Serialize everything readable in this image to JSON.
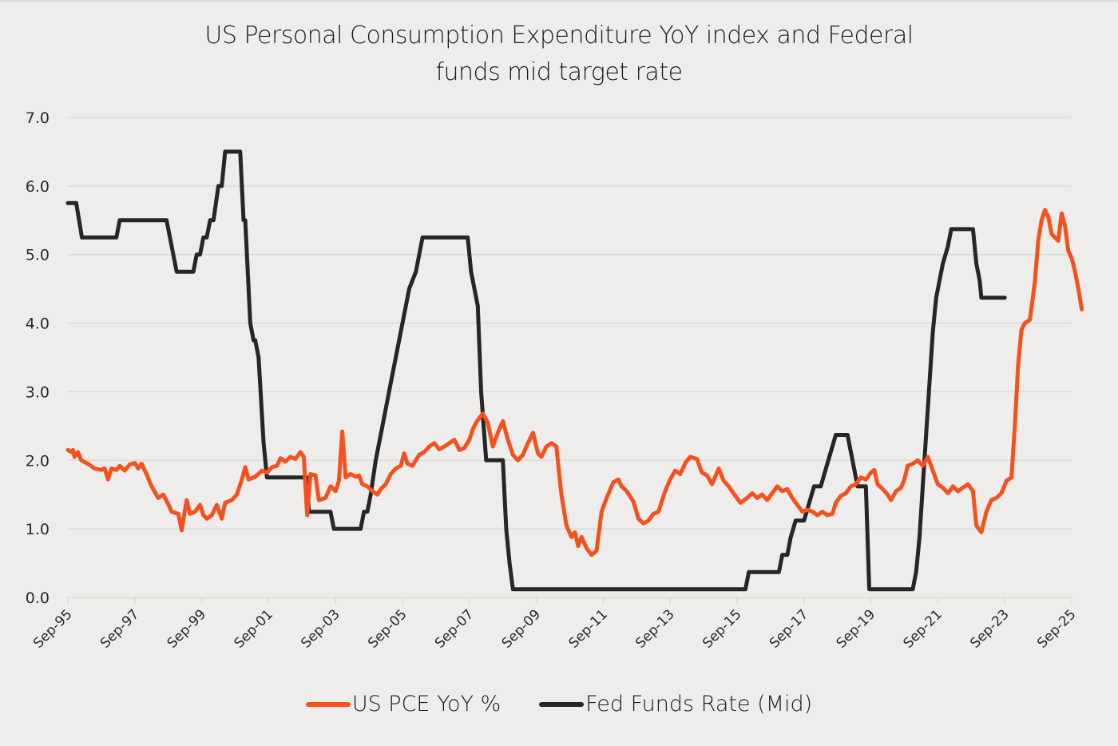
{
  "chart_data": {
    "type": "line",
    "title": "US Personal Consumption Expenditure YoY index and Federal funds mid target rate",
    "title_lines": [
      "US Personal Consumption Expenditure YoY index and Federal",
      "funds mid target rate"
    ],
    "xlabel": "",
    "ylabel": "",
    "ylim": [
      0,
      7
    ],
    "yticks": [
      "0.0",
      "1.0",
      "2.0",
      "3.0",
      "4.0",
      "5.0",
      "6.0",
      "7.0"
    ],
    "x_unit": "years since Sep-1995",
    "xlim": [
      0,
      30
    ],
    "xticks": [
      "Sep-95",
      "Sep-97",
      "Sep-99",
      "Sep-01",
      "Sep-03",
      "Sep-05",
      "Sep-07",
      "Sep-09",
      "Sep-11",
      "Sep-13",
      "Sep-15",
      "Sep-17",
      "Sep-19",
      "Sep-21",
      "Sep-23",
      "Sep-25"
    ],
    "grid": true,
    "legend_position": "bottom-center",
    "series": [
      {
        "name": "US PCE YoY %",
        "color": "#f4511e",
        "points": [
          [
            0.0,
            2.15
          ],
          [
            0.1,
            2.12
          ],
          [
            0.15,
            2.15
          ],
          [
            0.2,
            2.05
          ],
          [
            0.3,
            2.12
          ],
          [
            0.4,
            2.0
          ],
          [
            0.6,
            1.95
          ],
          [
            0.8,
            1.88
          ],
          [
            1.0,
            1.86
          ],
          [
            1.1,
            1.88
          ],
          [
            1.2,
            1.72
          ],
          [
            1.3,
            1.88
          ],
          [
            1.45,
            1.86
          ],
          [
            1.55,
            1.92
          ],
          [
            1.7,
            1.85
          ],
          [
            1.85,
            1.94
          ],
          [
            2.0,
            1.96
          ],
          [
            2.1,
            1.88
          ],
          [
            2.2,
            1.95
          ],
          [
            2.35,
            1.8
          ],
          [
            2.5,
            1.62
          ],
          [
            2.7,
            1.45
          ],
          [
            2.85,
            1.5
          ],
          [
            3.0,
            1.36
          ],
          [
            3.1,
            1.25
          ],
          [
            3.3,
            1.22
          ],
          [
            3.4,
            0.98
          ],
          [
            3.55,
            1.42
          ],
          [
            3.65,
            1.22
          ],
          [
            3.8,
            1.25
          ],
          [
            3.95,
            1.35
          ],
          [
            4.05,
            1.2
          ],
          [
            4.15,
            1.15
          ],
          [
            4.3,
            1.2
          ],
          [
            4.45,
            1.35
          ],
          [
            4.6,
            1.15
          ],
          [
            4.7,
            1.38
          ],
          [
            4.9,
            1.42
          ],
          [
            5.05,
            1.5
          ],
          [
            5.2,
            1.72
          ],
          [
            5.3,
            1.9
          ],
          [
            5.4,
            1.72
          ],
          [
            5.6,
            1.76
          ],
          [
            5.8,
            1.85
          ],
          [
            5.95,
            1.82
          ],
          [
            6.1,
            1.9
          ],
          [
            6.25,
            1.92
          ],
          [
            6.35,
            2.03
          ],
          [
            6.5,
            1.98
          ],
          [
            6.65,
            2.05
          ],
          [
            6.8,
            2.02
          ],
          [
            6.95,
            2.12
          ],
          [
            7.05,
            2.05
          ],
          [
            7.15,
            1.2
          ],
          [
            7.25,
            1.8
          ],
          [
            7.4,
            1.78
          ],
          [
            7.5,
            1.42
          ],
          [
            7.7,
            1.45
          ],
          [
            7.85,
            1.62
          ],
          [
            8.0,
            1.55
          ],
          [
            8.1,
            1.7
          ],
          [
            8.2,
            2.42
          ],
          [
            8.3,
            1.75
          ],
          [
            8.45,
            1.8
          ],
          [
            8.6,
            1.76
          ],
          [
            8.7,
            1.78
          ],
          [
            8.8,
            1.65
          ],
          [
            8.95,
            1.62
          ],
          [
            9.1,
            1.55
          ],
          [
            9.25,
            1.5
          ],
          [
            9.35,
            1.58
          ],
          [
            9.5,
            1.65
          ],
          [
            9.65,
            1.8
          ],
          [
            9.8,
            1.88
          ],
          [
            9.95,
            1.92
          ],
          [
            10.05,
            2.1
          ],
          [
            10.15,
            1.95
          ],
          [
            10.3,
            1.92
          ],
          [
            10.5,
            2.08
          ],
          [
            10.65,
            2.12
          ],
          [
            10.8,
            2.2
          ],
          [
            10.95,
            2.25
          ],
          [
            11.1,
            2.16
          ],
          [
            11.25,
            2.2
          ],
          [
            11.4,
            2.25
          ],
          [
            11.55,
            2.3
          ],
          [
            11.7,
            2.15
          ],
          [
            11.85,
            2.18
          ],
          [
            12.0,
            2.3
          ],
          [
            12.1,
            2.45
          ],
          [
            12.2,
            2.55
          ],
          [
            12.3,
            2.62
          ],
          [
            12.4,
            2.68
          ],
          [
            12.55,
            2.55
          ],
          [
            12.7,
            2.2
          ],
          [
            12.85,
            2.4
          ],
          [
            13.0,
            2.57
          ],
          [
            13.15,
            2.3
          ],
          [
            13.3,
            2.08
          ],
          [
            13.45,
            2.0
          ],
          [
            13.6,
            2.08
          ],
          [
            13.75,
            2.25
          ],
          [
            13.9,
            2.4
          ],
          [
            14.05,
            2.1
          ],
          [
            14.15,
            2.05
          ],
          [
            14.3,
            2.2
          ],
          [
            14.45,
            2.25
          ],
          [
            14.6,
            2.2
          ],
          [
            14.75,
            1.5
          ],
          [
            14.9,
            1.05
          ],
          [
            15.05,
            0.88
          ],
          [
            15.15,
            0.95
          ],
          [
            15.25,
            0.75
          ],
          [
            15.35,
            0.88
          ],
          [
            15.5,
            0.72
          ],
          [
            15.65,
            0.62
          ],
          [
            15.8,
            0.68
          ],
          [
            15.95,
            1.25
          ],
          [
            16.1,
            1.45
          ],
          [
            16.3,
            1.68
          ],
          [
            16.45,
            1.72
          ],
          [
            16.55,
            1.62
          ],
          [
            16.7,
            1.55
          ],
          [
            16.9,
            1.4
          ],
          [
            17.05,
            1.15
          ],
          [
            17.2,
            1.08
          ],
          [
            17.35,
            1.12
          ],
          [
            17.5,
            1.22
          ],
          [
            17.65,
            1.25
          ],
          [
            17.85,
            1.55
          ],
          [
            18.0,
            1.72
          ],
          [
            18.15,
            1.85
          ],
          [
            18.3,
            1.8
          ],
          [
            18.45,
            1.96
          ],
          [
            18.6,
            2.05
          ],
          [
            18.8,
            2.02
          ],
          [
            18.95,
            1.82
          ],
          [
            19.1,
            1.78
          ],
          [
            19.25,
            1.65
          ],
          [
            19.45,
            1.88
          ],
          [
            19.6,
            1.7
          ],
          [
            19.75,
            1.62
          ],
          [
            19.95,
            1.48
          ],
          [
            20.1,
            1.38
          ],
          [
            20.3,
            1.45
          ],
          [
            20.45,
            1.52
          ],
          [
            20.6,
            1.45
          ],
          [
            20.75,
            1.5
          ],
          [
            20.9,
            1.42
          ],
          [
            21.05,
            1.52
          ],
          [
            21.2,
            1.62
          ],
          [
            21.35,
            1.55
          ],
          [
            21.5,
            1.58
          ],
          [
            21.65,
            1.45
          ],
          [
            21.8,
            1.35
          ],
          [
            21.95,
            1.25
          ],
          [
            22.1,
            1.28
          ],
          [
            22.25,
            1.25
          ],
          [
            22.4,
            1.2
          ],
          [
            22.55,
            1.25
          ],
          [
            22.7,
            1.2
          ],
          [
            22.85,
            1.22
          ],
          [
            22.95,
            1.38
          ],
          [
            23.1,
            1.48
          ],
          [
            23.25,
            1.52
          ],
          [
            23.4,
            1.62
          ],
          [
            23.55,
            1.65
          ],
          [
            23.7,
            1.75
          ],
          [
            23.85,
            1.72
          ],
          [
            24.0,
            1.82
          ],
          [
            24.1,
            1.86
          ],
          [
            24.2,
            1.65
          ],
          [
            24.35,
            1.58
          ],
          [
            24.5,
            1.5
          ],
          [
            24.6,
            1.42
          ],
          [
            24.75,
            1.55
          ],
          [
            24.9,
            1.6
          ],
          [
            25.0,
            1.72
          ],
          [
            25.1,
            1.92
          ],
          [
            25.25,
            1.95
          ],
          [
            25.4,
            2.0
          ],
          [
            25.55,
            1.92
          ],
          [
            25.7,
            2.05
          ],
          [
            25.85,
            1.85
          ],
          [
            26.0,
            1.65
          ],
          [
            26.15,
            1.6
          ],
          [
            26.3,
            1.52
          ],
          [
            26.45,
            1.62
          ],
          [
            26.6,
            1.55
          ],
          [
            26.75,
            1.6
          ],
          [
            26.9,
            1.65
          ],
          [
            27.05,
            1.55
          ],
          [
            27.15,
            1.05
          ],
          [
            27.3,
            0.95
          ],
          [
            27.45,
            1.25
          ],
          [
            27.6,
            1.42
          ],
          [
            27.75,
            1.45
          ],
          [
            27.9,
            1.52
          ],
          [
            28.05,
            1.7
          ],
          [
            28.2,
            1.75
          ],
          [
            28.3,
            2.5
          ],
          [
            28.4,
            3.4
          ],
          [
            28.5,
            3.9
          ],
          [
            28.6,
            4.0
          ],
          [
            28.75,
            4.05
          ],
          [
            28.9,
            4.6
          ],
          [
            29.0,
            5.2
          ],
          [
            29.1,
            5.5
          ],
          [
            29.2,
            5.65
          ],
          [
            29.3,
            5.55
          ],
          [
            29.4,
            5.3
          ],
          [
            29.5,
            5.25
          ],
          [
            29.6,
            5.2
          ],
          [
            29.7,
            5.6
          ],
          [
            29.8,
            5.42
          ],
          [
            29.9,
            5.05
          ],
          [
            30.0,
            4.95
          ],
          [
            30.1,
            4.75
          ],
          [
            30.2,
            4.5
          ],
          [
            30.3,
            4.2
          ]
        ]
      },
      {
        "name": "Fed Funds Rate (Mid)",
        "color": "#262626",
        "points": [
          [
            0.0,
            5.75
          ],
          [
            0.25,
            5.75
          ],
          [
            0.42,
            5.25
          ],
          [
            1.45,
            5.25
          ],
          [
            1.55,
            5.5
          ],
          [
            2.95,
            5.5
          ],
          [
            3.25,
            4.75
          ],
          [
            3.75,
            4.75
          ],
          [
            3.85,
            5.0
          ],
          [
            3.95,
            5.0
          ],
          [
            4.05,
            5.25
          ],
          [
            4.15,
            5.25
          ],
          [
            4.25,
            5.5
          ],
          [
            4.35,
            5.5
          ],
          [
            4.5,
            6.0
          ],
          [
            4.6,
            6.0
          ],
          [
            4.7,
            6.5
          ],
          [
            5.15,
            6.5
          ],
          [
            5.25,
            5.5
          ],
          [
            5.3,
            5.5
          ],
          [
            5.45,
            4.0
          ],
          [
            5.55,
            3.75
          ],
          [
            5.6,
            3.75
          ],
          [
            5.7,
            3.5
          ],
          [
            5.85,
            2.25
          ],
          [
            5.95,
            1.75
          ],
          [
            7.15,
            1.75
          ],
          [
            7.2,
            1.25
          ],
          [
            7.85,
            1.25
          ],
          [
            7.95,
            1.0
          ],
          [
            8.75,
            1.0
          ],
          [
            8.85,
            1.25
          ],
          [
            8.95,
            1.25
          ],
          [
            9.05,
            1.5
          ],
          [
            9.2,
            2.0
          ],
          [
            9.4,
            2.5
          ],
          [
            9.6,
            3.0
          ],
          [
            9.8,
            3.5
          ],
          [
            10.0,
            4.0
          ],
          [
            10.2,
            4.5
          ],
          [
            10.4,
            4.75
          ],
          [
            10.6,
            5.25
          ],
          [
            11.95,
            5.25
          ],
          [
            12.05,
            4.75
          ],
          [
            12.15,
            4.5
          ],
          [
            12.25,
            4.25
          ],
          [
            12.35,
            3.0
          ],
          [
            12.5,
            2.0
          ],
          [
            13.0,
            2.0
          ],
          [
            13.1,
            1.0
          ],
          [
            13.2,
            0.5
          ],
          [
            13.3,
            0.12
          ],
          [
            20.25,
            0.12
          ],
          [
            20.35,
            0.37
          ],
          [
            21.25,
            0.37
          ],
          [
            21.35,
            0.62
          ],
          [
            21.5,
            0.62
          ],
          [
            21.6,
            0.87
          ],
          [
            21.75,
            1.12
          ],
          [
            22.0,
            1.12
          ],
          [
            22.15,
            1.37
          ],
          [
            22.3,
            1.62
          ],
          [
            22.5,
            1.62
          ],
          [
            22.65,
            1.87
          ],
          [
            22.8,
            2.12
          ],
          [
            22.95,
            2.37
          ],
          [
            23.3,
            2.37
          ],
          [
            23.4,
            2.12
          ],
          [
            23.5,
            1.87
          ],
          [
            23.6,
            1.62
          ],
          [
            23.85,
            1.62
          ],
          [
            23.95,
            0.12
          ],
          [
            25.25,
            0.12
          ],
          [
            25.35,
            0.37
          ],
          [
            25.45,
            0.87
          ],
          [
            25.55,
            1.62
          ],
          [
            25.65,
            2.37
          ],
          [
            25.75,
            3.12
          ],
          [
            25.85,
            3.87
          ],
          [
            25.95,
            4.37
          ],
          [
            26.05,
            4.62
          ],
          [
            26.15,
            4.87
          ],
          [
            26.3,
            5.12
          ],
          [
            26.4,
            5.37
          ],
          [
            27.05,
            5.37
          ],
          [
            27.15,
            4.87
          ],
          [
            27.25,
            4.62
          ],
          [
            27.3,
            4.37
          ],
          [
            28.0,
            4.37
          ]
        ]
      }
    ]
  },
  "legend": {
    "items": [
      {
        "label": "US PCE YoY %",
        "color": "#f4511e"
      },
      {
        "label": "Fed Funds Rate (Mid)",
        "color": "#262626"
      }
    ]
  }
}
